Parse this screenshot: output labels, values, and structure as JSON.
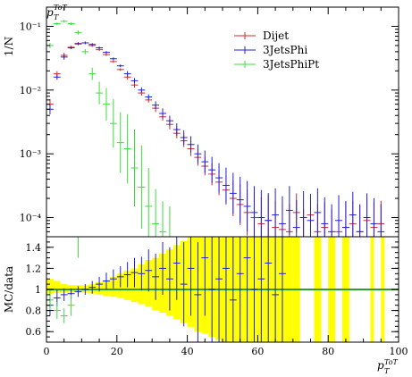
{
  "chart_data": [
    {
      "type": "scatter",
      "panel": "main",
      "ylabel": "1/N",
      "title_var": "p",
      "title_sub": "T",
      "title_sup": "ToT",
      "yscale": "log",
      "ylim": [
        5e-05,
        0.2
      ],
      "xlim": [
        0,
        100
      ],
      "y_ticks": [
        {
          "v": 0.1,
          "label": "10⁻¹"
        },
        {
          "v": 0.01,
          "label": "10⁻²"
        },
        {
          "v": 0.001,
          "label": "10⁻³"
        },
        {
          "v": 0.0001,
          "label": "10⁻⁴"
        }
      ],
      "legend_position": "top-right",
      "series": [
        {
          "name": "Dijet",
          "color": "#d62728",
          "x": [
            1,
            3,
            5,
            7,
            9,
            11,
            13,
            15,
            17,
            19,
            21,
            23,
            25,
            27,
            29,
            31,
            33,
            35,
            37,
            39,
            41,
            43,
            45,
            47,
            49,
            51,
            53,
            55,
            57,
            59,
            61,
            63,
            65,
            67,
            69,
            71,
            73,
            75,
            77,
            79,
            81,
            83,
            85,
            87,
            89,
            91,
            93,
            95
          ],
          "y": [
            0.006,
            0.018,
            0.035,
            0.047,
            0.054,
            0.055,
            0.05,
            0.043,
            0.036,
            0.028,
            0.021,
            0.016,
            0.012,
            0.009,
            0.007,
            0.0052,
            0.0038,
            0.0029,
            0.0021,
            0.0016,
            0.0012,
            0.00088,
            0.00064,
            0.00048,
            0.00036,
            0.00027,
            0.0002,
            0.00016,
            0.00012,
            0.0001,
            8e-05,
            9e-05,
            7e-05,
            6.5e-05,
            6e-05,
            0.00012,
            5e-05,
            0.00011,
            6e-05,
            7e-05,
            5e-05,
            6e-05,
            7e-05,
            8e-05,
            6e-05,
            9e-05,
            7e-05,
            8e-05
          ],
          "err_factor": [
            1.2,
            1.1,
            1.1,
            1.05,
            1.05,
            1.05,
            1.05,
            1.05,
            1.05,
            1.05,
            1.05,
            1.1,
            1.1,
            1.1,
            1.1,
            1.15,
            1.15,
            1.2,
            1.2,
            1.25,
            1.3,
            1.35,
            1.4,
            1.5,
            1.6,
            1.7,
            1.9,
            2.1,
            2.3,
            2.5,
            2.6,
            2.5,
            2.6,
            2.6,
            2.7,
            2.0,
            2.7,
            2.0,
            2.7,
            2.5,
            2.7,
            2.5,
            2.5,
            2.3,
            2.6,
            2.2,
            2.5,
            2.3
          ]
        },
        {
          "name": "3JetsPhi",
          "color": "#1f1fdd",
          "x": [
            1,
            3,
            5,
            7,
            9,
            11,
            13,
            15,
            17,
            19,
            21,
            23,
            25,
            27,
            29,
            31,
            33,
            35,
            37,
            39,
            41,
            43,
            45,
            47,
            49,
            51,
            53,
            55,
            57,
            59,
            61,
            63,
            65,
            67,
            69,
            71,
            73,
            75,
            77,
            79,
            81,
            83,
            85,
            87,
            89,
            91,
            93,
            95
          ],
          "y": [
            0.005,
            0.016,
            0.033,
            0.046,
            0.053,
            0.055,
            0.052,
            0.046,
            0.039,
            0.031,
            0.024,
            0.018,
            0.014,
            0.01,
            0.0078,
            0.0058,
            0.0043,
            0.0033,
            0.0024,
            0.0018,
            0.0014,
            0.001,
            0.00075,
            0.00056,
            0.00042,
            0.00032,
            0.00024,
            0.00019,
            0.00015,
            0.00012,
            0.0001,
            9e-05,
            0.00011,
            8e-05,
            0.00013,
            7e-05,
            0.0001,
            9e-05,
            0.00012,
            8e-05,
            6e-05,
            9e-05,
            7e-05,
            0.00011,
            6e-05,
            0.0001,
            8e-05,
            6e-05
          ],
          "err_factor": [
            1.2,
            1.1,
            1.1,
            1.05,
            1.05,
            1.05,
            1.05,
            1.05,
            1.05,
            1.05,
            1.05,
            1.1,
            1.1,
            1.1,
            1.1,
            1.15,
            1.2,
            1.2,
            1.25,
            1.3,
            1.35,
            1.4,
            1.5,
            1.6,
            1.7,
            1.9,
            2.1,
            2.3,
            2.5,
            2.6,
            2.7,
            2.7,
            2.6,
            2.7,
            2.4,
            2.7,
            2.6,
            2.6,
            2.4,
            2.6,
            2.7,
            2.5,
            2.6,
            2.3,
            2.7,
            2.4,
            2.5,
            2.7
          ]
        },
        {
          "name": "3JetsPhiPt",
          "color": "#3ddc3d",
          "x": [
            1,
            3,
            5,
            7,
            9,
            11,
            13,
            15,
            17,
            19,
            21,
            23,
            25,
            27,
            29,
            31,
            33,
            35
          ],
          "y": [
            0.05,
            0.11,
            0.12,
            0.11,
            0.08,
            0.04,
            0.018,
            0.009,
            0.006,
            0.003,
            0.0015,
            0.0012,
            0.0006,
            0.0003,
            0.00015,
            8e-05,
            6e-05,
            5e-05
          ],
          "err_factor": [
            1.1,
            1.05,
            1.05,
            1.05,
            1.08,
            1.1,
            1.25,
            1.5,
            1.8,
            2.4,
            3.0,
            3.5,
            4.0,
            4.5,
            4.0,
            3.5,
            3.0,
            3.0
          ]
        }
      ]
    },
    {
      "type": "scatter",
      "panel": "ratio",
      "ylabel": "MC/data",
      "xlabel_var": "p",
      "xlabel_sub": "T",
      "xlabel_sup": "ToT",
      "ylim": [
        0.5,
        1.5
      ],
      "xlim": [
        0,
        100
      ],
      "y_ticks": [
        {
          "v": 0.6,
          "label": "0.6"
        },
        {
          "v": 0.8,
          "label": "0.8"
        },
        {
          "v": 1.0,
          "label": "1"
        },
        {
          "v": 1.2,
          "label": "1.2"
        },
        {
          "v": 1.4,
          "label": "1.4"
        }
      ],
      "x_ticks": [
        {
          "v": 0,
          "label": "0"
        },
        {
          "v": 20,
          "label": "20"
        },
        {
          "v": 40,
          "label": "40"
        },
        {
          "v": 60,
          "label": "60"
        },
        {
          "v": 80,
          "label": "80"
        },
        {
          "v": 100,
          "label": "100"
        }
      ],
      "reference_line": {
        "y": 1.0,
        "color": "#2ca02c"
      },
      "band": {
        "color": "#ffff00",
        "x0": [
          0,
          2,
          4,
          6,
          8,
          10,
          12,
          14,
          16,
          18,
          20,
          22,
          24,
          26,
          28,
          30,
          32,
          34,
          36,
          38,
          40,
          42,
          44,
          46,
          48,
          50,
          52,
          54,
          56,
          58,
          60,
          62,
          64,
          66,
          68
        ],
        "x1": [
          2,
          4,
          6,
          8,
          10,
          12,
          14,
          16,
          18,
          20,
          22,
          24,
          26,
          28,
          30,
          32,
          34,
          36,
          38,
          40,
          42,
          44,
          46,
          48,
          50,
          52,
          54,
          56,
          58,
          60,
          62,
          64,
          66,
          68,
          70
        ],
        "low": [
          0.96,
          0.97,
          0.97,
          0.97,
          0.97,
          0.97,
          0.96,
          0.95,
          0.94,
          0.93,
          0.92,
          0.9,
          0.88,
          0.86,
          0.84,
          0.8,
          0.78,
          0.75,
          0.72,
          0.68,
          0.64,
          0.6,
          0.58,
          0.55,
          0.52,
          0.5,
          0.5,
          0.5,
          0.5,
          0.5,
          0.5,
          0.5,
          0.5,
          0.5,
          0.5
        ],
        "high": [
          1.1,
          1.08,
          1.05,
          1.04,
          1.04,
          1.04,
          1.05,
          1.07,
          1.09,
          1.12,
          1.15,
          1.18,
          1.2,
          1.24,
          1.28,
          1.3,
          1.34,
          1.38,
          1.42,
          1.46,
          1.5,
          1.5,
          1.5,
          1.5,
          1.5,
          1.5,
          1.5,
          1.5,
          1.5,
          1.5,
          1.5,
          1.5,
          1.5,
          1.5,
          1.5
        ],
        "spikes": [
          {
            "x0": 70,
            "x1": 72,
            "low": 0.5,
            "high": 1.5
          },
          {
            "x0": 76,
            "x1": 78,
            "low": 0.5,
            "high": 1.5
          },
          {
            "x0": 80,
            "x1": 82,
            "low": 0.5,
            "high": 1.5
          },
          {
            "x0": 84,
            "x1": 86,
            "low": 0.5,
            "high": 1.5
          },
          {
            "x0": 92,
            "x1": 93,
            "low": 0.5,
            "high": 1.5
          },
          {
            "x0": 95,
            "x1": 96,
            "low": 0.5,
            "high": 1.5
          }
        ]
      },
      "series": [
        {
          "name": "3JetsPhi",
          "color": "#1f1fdd",
          "x": [
            1,
            3,
            5,
            7,
            9,
            11,
            13,
            15,
            17,
            19,
            21,
            23,
            25,
            27,
            29,
            31,
            33,
            35,
            37,
            39,
            41,
            43,
            45,
            47,
            49,
            51,
            53,
            55,
            57,
            59,
            61,
            63,
            65,
            67
          ],
          "y": [
            0.85,
            0.92,
            0.95,
            0.96,
            0.98,
            1.0,
            1.02,
            1.05,
            1.08,
            1.1,
            1.12,
            1.14,
            1.16,
            1.15,
            1.18,
            1.12,
            1.2,
            1.1,
            1.25,
            1.05,
            1.2,
            0.95,
            1.3,
            1.0,
            1.1,
            1.2,
            0.9,
            1.15,
            1.3,
            1.0,
            1.1,
            1.25,
            0.95,
            1.15
          ],
          "err": [
            0.1,
            0.08,
            0.06,
            0.05,
            0.05,
            0.05,
            0.06,
            0.07,
            0.08,
            0.09,
            0.1,
            0.12,
            0.14,
            0.16,
            0.2,
            0.22,
            0.25,
            0.3,
            0.35,
            0.4,
            0.45,
            0.5,
            0.55,
            0.6,
            0.65,
            0.7,
            0.75,
            0.8,
            0.8,
            0.8,
            0.8,
            0.8,
            0.8,
            0.8
          ]
        },
        {
          "name": "3JetsPhiPt",
          "color": "#3ddc3d",
          "x": [
            1,
            3,
            5,
            7,
            9
          ],
          "y": [
            0.9,
            0.8,
            0.75,
            0.85,
            1.5
          ],
          "err": [
            0.1,
            0.08,
            0.07,
            0.1,
            0.2
          ]
        }
      ]
    }
  ]
}
